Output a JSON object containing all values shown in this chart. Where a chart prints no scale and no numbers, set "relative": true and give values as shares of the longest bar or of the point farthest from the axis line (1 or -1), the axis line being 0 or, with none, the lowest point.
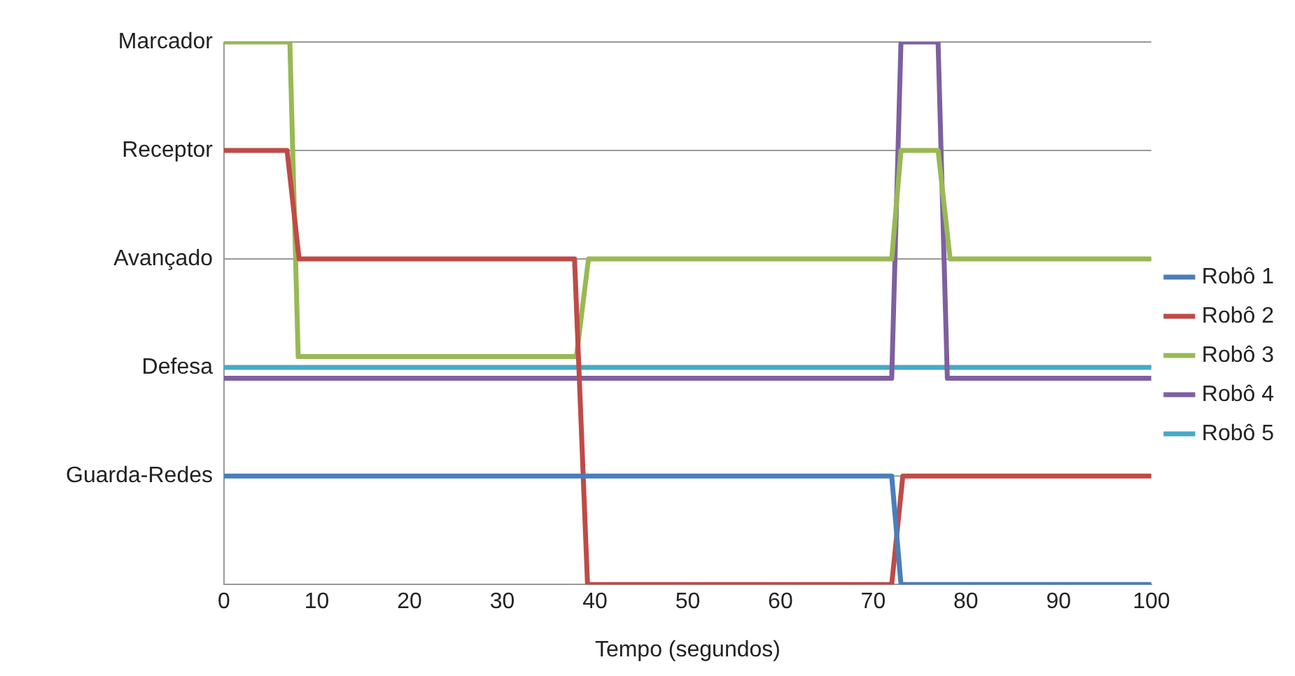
{
  "chart_data": {
    "type": "line",
    "relative": true,
    "xlabel": "Tempo (segundos)",
    "xlim": [
      0,
      100
    ],
    "xticks": [
      0,
      10,
      20,
      30,
      40,
      50,
      60,
      70,
      80,
      90,
      100
    ],
    "annotations": [
      "Guarda-Redes",
      "Defesa",
      "Avançado",
      "Receptor",
      "Marcador"
    ],
    "grid": "y",
    "legend": "right",
    "marker": "none",
    "line_style": "solid",
    "series": [
      {
        "name": "Robô 1",
        "color": "#4a7ebb",
        "x": [
          0,
          72,
          73,
          100
        ],
        "values": [
          0.2,
          0.2,
          0,
          0
        ]
      },
      {
        "name": "Robô 2",
        "color": "#be4b48",
        "x": [
          0,
          6.8,
          8.1,
          37.8,
          39.2,
          72,
          73.2,
          100
        ],
        "values": [
          0.8,
          0.8,
          0.6,
          0.6,
          0,
          0,
          0.2,
          0.2
        ]
      },
      {
        "name": "Robô 3",
        "color": "#98b954",
        "x": [
          0,
          7.1,
          8,
          38,
          39.3,
          72,
          73,
          77,
          78.3,
          100
        ],
        "values": [
          1,
          1,
          0.42,
          0.42,
          0.6,
          0.6,
          0.8,
          0.8,
          0.6,
          0.6
        ]
      },
      {
        "name": "Robô 4",
        "color": "#7d60a0",
        "x": [
          0,
          72,
          73,
          77,
          78,
          100
        ],
        "values": [
          0.38,
          0.38,
          1,
          1,
          0.38,
          0.38
        ]
      },
      {
        "name": "Robô 5",
        "color": "#46aac5",
        "x": [
          0,
          100
        ],
        "values": [
          0.4,
          0.4
        ]
      }
    ]
  }
}
